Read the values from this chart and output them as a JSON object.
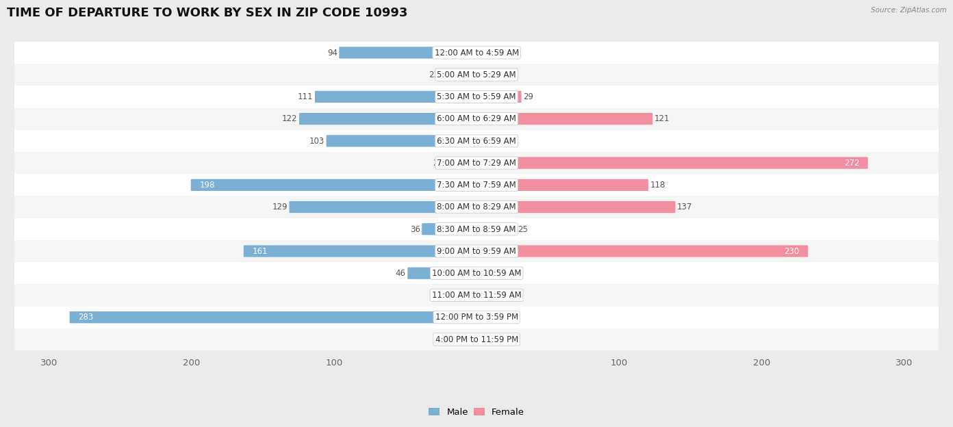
{
  "title": "TIME OF DEPARTURE TO WORK BY SEX IN ZIP CODE 10993",
  "source": "Source: ZipAtlas.com",
  "categories": [
    "12:00 AM to 4:59 AM",
    "5:00 AM to 5:29 AM",
    "5:30 AM to 5:59 AM",
    "6:00 AM to 6:29 AM",
    "6:30 AM to 6:59 AM",
    "7:00 AM to 7:29 AM",
    "7:30 AM to 7:59 AM",
    "8:00 AM to 8:29 AM",
    "8:30 AM to 8:59 AM",
    "9:00 AM to 9:59 AM",
    "10:00 AM to 10:59 AM",
    "11:00 AM to 11:59 AM",
    "12:00 PM to 3:59 PM",
    "4:00 PM to 11:59 PM"
  ],
  "male_values": [
    94,
    23,
    111,
    122,
    103,
    20,
    198,
    129,
    36,
    161,
    46,
    0,
    283,
    0
  ],
  "female_values": [
    0,
    16,
    29,
    121,
    0,
    272,
    118,
    137,
    25,
    230,
    0,
    0,
    0,
    0
  ],
  "male_color": "#7bafd4",
  "female_color": "#f18fa0",
  "axis_max": 300,
  "background_color": "#ebebeb",
  "row_bg_odd": "#f5f5f5",
  "row_bg_even": "#ffffff",
  "bar_height": 0.52,
  "title_fontsize": 13,
  "tick_fontsize": 9.5,
  "label_fontsize": 8.5,
  "cat_fontsize": 8.5,
  "inside_label_threshold_male": 160,
  "inside_label_threshold_female": 200
}
